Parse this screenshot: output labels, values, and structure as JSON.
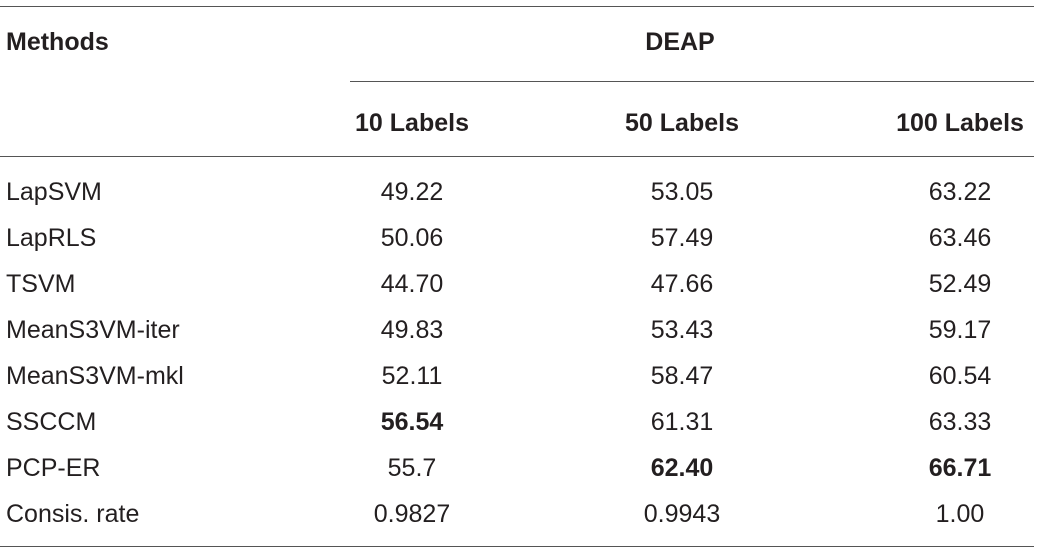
{
  "header": {
    "methods_label": "Methods",
    "group_label": "DEAP",
    "columns": [
      "10 Labels",
      "50 Labels",
      "100 Labels"
    ]
  },
  "rows": [
    {
      "method": "LapSVM",
      "values": [
        "49.22",
        "53.05",
        "63.22"
      ],
      "bold": [
        false,
        false,
        false
      ]
    },
    {
      "method": "LapRLS",
      "values": [
        "50.06",
        "57.49",
        "63.46"
      ],
      "bold": [
        false,
        false,
        false
      ]
    },
    {
      "method": "TSVM",
      "values": [
        "44.70",
        "47.66",
        "52.49"
      ],
      "bold": [
        false,
        false,
        false
      ]
    },
    {
      "method": "MeanS3VM-iter",
      "values": [
        "49.83",
        "53.43",
        "59.17"
      ],
      "bold": [
        false,
        false,
        false
      ]
    },
    {
      "method": "MeanS3VM-mkl",
      "values": [
        "52.11",
        "58.47",
        "60.54"
      ],
      "bold": [
        false,
        false,
        false
      ]
    },
    {
      "method": "SSCCM",
      "values": [
        "56.54",
        "61.31",
        "63.33"
      ],
      "bold": [
        true,
        false,
        false
      ]
    },
    {
      "method": "PCP-ER",
      "values": [
        "55.7",
        "62.40",
        "66.71"
      ],
      "bold": [
        false,
        true,
        true
      ]
    },
    {
      "method": "Consis. rate",
      "values": [
        "0.9827",
        "0.9943",
        "1.00"
      ],
      "bold": [
        false,
        false,
        false
      ]
    }
  ]
}
